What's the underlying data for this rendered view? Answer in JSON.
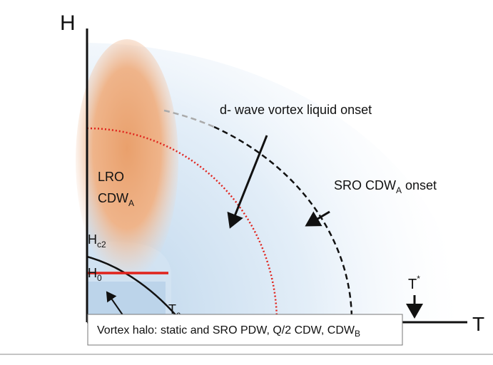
{
  "axes": {
    "y": "H",
    "x": "T"
  },
  "labels": {
    "lro": "LRO",
    "cdw_a": {
      "text": "CDW",
      "sub": "A"
    },
    "hc2": {
      "text": "H",
      "sub": "c2"
    },
    "h0": {
      "text": "H",
      "sub": "0"
    },
    "tc": {
      "text": "T",
      "sub": "c"
    },
    "tstar": {
      "text": "T",
      "sup": "*"
    },
    "dwave": "d- wave vortex liquid onset",
    "sro": {
      "text": "SRO CDW",
      "sub": "A",
      "rest": " onset"
    }
  },
  "caption": {
    "text": "Vortex halo: static and SRO PDW, Q/2 CDW, CDW",
    "sub": "B"
  }
}
